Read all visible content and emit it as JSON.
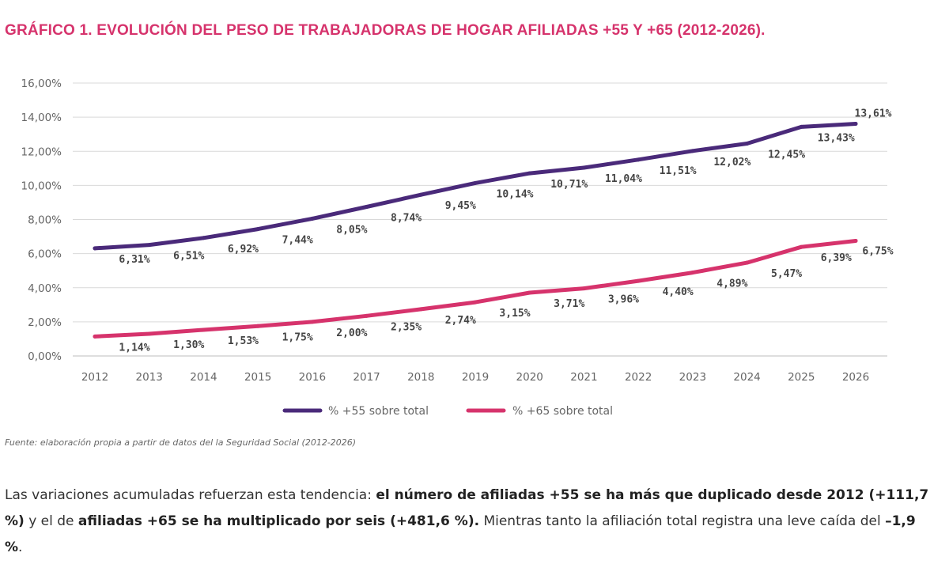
{
  "title": "GRÁFICO 1. EVOLUCIÓN DEL PESO DE TRABAJADORAS DE HOGAR AFILIADAS +55 Y +65 (2012-2026).",
  "chart_data": {
    "type": "line",
    "x": [
      "2012",
      "2013",
      "2014",
      "2015",
      "2016",
      "2017",
      "2018",
      "2019",
      "2020",
      "2021",
      "2022",
      "2023",
      "2024",
      "2025",
      "2026"
    ],
    "y_ticks": [
      "0,00%",
      "2,00%",
      "4,00%",
      "6,00%",
      "8,00%",
      "10,00%",
      "12,00%",
      "14,00%",
      "16,00%"
    ],
    "ylim": [
      0,
      16
    ],
    "grid": true,
    "legend_position": "bottom",
    "series": [
      {
        "name": "% +55 sobre total",
        "color": "#4a2a7a",
        "values": [
          6.31,
          6.51,
          6.92,
          7.44,
          8.05,
          8.74,
          9.45,
          10.14,
          10.71,
          11.04,
          11.51,
          12.02,
          12.45,
          13.43,
          13.61
        ],
        "labels": [
          "6,31%",
          "6,51%",
          "6,92%",
          "7,44%",
          "8,05%",
          "8,74%",
          "9,45%",
          "10,14%",
          "10,71%",
          "11,04%",
          "11,51%",
          "12,02%",
          "12,45%",
          "13,43%",
          "13,61%"
        ]
      },
      {
        "name": "% +65 sobre total",
        "color": "#d6336c",
        "values": [
          1.14,
          1.3,
          1.53,
          1.75,
          2.0,
          2.35,
          2.74,
          3.15,
          3.71,
          3.96,
          4.4,
          4.89,
          5.47,
          6.39,
          6.75
        ],
        "labels": [
          "1,14%",
          "1,30%",
          "1,53%",
          "1,75%",
          "2,00%",
          "2,35%",
          "2,74%",
          "3,15%",
          "3,71%",
          "3,96%",
          "4,40%",
          "4,89%",
          "5,47%",
          "6,39%",
          "6,75%"
        ]
      }
    ]
  },
  "source": "Fuente: elaboración propia a partir de datos del la Seguridad Social (2012-2026)",
  "paragraph": {
    "p1": "Las variaciones acumuladas refuerzan esta tendencia: ",
    "b1": "el número de afiliadas +55 se ha más que duplicado desde 2012 (+111,7 %)",
    "p2": " y el de ",
    "b2": "afiliadas +65 se ha multiplicado por seis (+481,6 %).",
    "p3": " Mientras tanto la afiliación total registra una leve caída del ",
    "b3": "–1,9 %",
    "p4": "."
  }
}
